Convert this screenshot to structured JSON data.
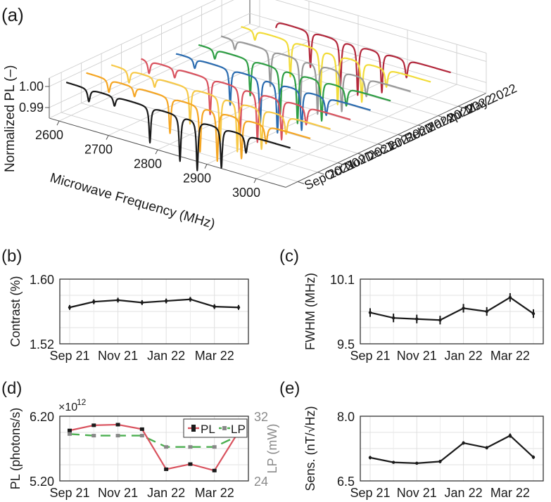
{
  "chart_data": [
    {
      "panel": "(a)",
      "type": "line",
      "zlabel": "Normalized PL (–)",
      "xlabel": "Microwave Frequency (MHz)",
      "x_ticks": [
        "2600",
        "2700",
        "2800",
        "2900",
        "3000"
      ],
      "xlim": [
        2580,
        3060
      ],
      "z_ticks": [
        "0.99",
        "1.00"
      ],
      "y_ticks": [
        "Sep 2021",
        "Oct 2021",
        "Nov 2021",
        "Dec 2021",
        "Jan 2022",
        "Feb 2022",
        "Mar 2022",
        "Apr 2022",
        "May 2022"
      ],
      "dips_mhz": [
        2636,
        2688,
        2760,
        2821,
        2856,
        2905,
        2955
      ],
      "dip_widths_mhz": [
        3.0,
        3.0,
        2.2,
        2.2,
        2.2,
        2.2,
        3.0
      ],
      "dip_depths": [
        0.006,
        0.0045,
        0.017,
        0.0215,
        0.0235,
        0.019,
        0.0085
      ],
      "series": [
        {
          "name": "Sep 2021",
          "color": "#1a1a1a",
          "x_range": [
            2590,
            3045
          ],
          "depth_scale": 1.0
        },
        {
          "name": "Oct 2021",
          "color": "#f5a623",
          "x_range": [
            2590,
            3045
          ],
          "depth_scale": 1.0
        },
        {
          "name": "Nov 2021",
          "color": "#f7c948",
          "x_range": [
            2600,
            3045
          ],
          "depth_scale": 1.0
        },
        {
          "name": "Dec 2021",
          "color": "#d9525e",
          "x_range": [
            2620,
            3045
          ],
          "depth_scale": 1.0
        },
        {
          "name": "Jan 2022",
          "color": "#2b6cb0",
          "x_range": [
            2650,
            3045
          ],
          "depth_scale": 1.0
        },
        {
          "name": "Feb 2022",
          "color": "#2e9e44",
          "x_range": [
            2655,
            3045
          ],
          "depth_scale": 1.0
        },
        {
          "name": "Mar 2022",
          "color": "#9a9a9a",
          "x_range": [
            2660,
            3045
          ],
          "depth_scale": 1.0
        },
        {
          "name": "Apr 2022",
          "color": "#f2dc3a",
          "x_range": [
            2660,
            3045
          ],
          "depth_scale": 1.0
        },
        {
          "name": "May 2022",
          "color": "#b3283c",
          "x_range": [
            2690,
            3045
          ],
          "depth_scale": 1.0
        }
      ]
    },
    {
      "panel": "(b)",
      "type": "line",
      "ylabel": "Contrast (%)",
      "ylim": [
        1.52,
        1.6
      ],
      "y_ticks": [
        "1.52",
        "1.60"
      ],
      "x_ticks": [
        "Sep 21",
        "Nov 21",
        "Jan 22",
        "Mar 22"
      ],
      "x_tick_index": [
        0,
        2,
        4,
        6
      ],
      "series": [
        {
          "values": [
            1.565,
            1.572,
            1.574,
            1.571,
            1.573,
            1.575,
            1.566,
            1.565
          ],
          "errors": [
            0.003,
            0.003,
            0.003,
            0.003,
            0.003,
            0.003,
            0.003,
            0.003
          ],
          "color": "#1a1a1a"
        }
      ]
    },
    {
      "panel": "(c)",
      "type": "line",
      "ylabel": "FWHM (MHz)",
      "ylim": [
        9.5,
        10.1
      ],
      "y_ticks": [
        "9.5",
        "10.1"
      ],
      "x_ticks": [
        "Sep 21",
        "Nov 21",
        "Jan 22",
        "Mar 22"
      ],
      "x_tick_index": [
        0,
        2,
        4,
        6
      ],
      "series": [
        {
          "values": [
            9.79,
            9.74,
            9.73,
            9.72,
            9.83,
            9.8,
            9.93,
            9.78
          ],
          "errors": [
            0.04,
            0.04,
            0.04,
            0.04,
            0.04,
            0.04,
            0.04,
            0.04
          ],
          "color": "#1a1a1a"
        }
      ]
    },
    {
      "panel": "(d)",
      "type": "line",
      "ylabel": "PL (photons/s)",
      "y2label": "LP (mW)",
      "multiplier": "×10",
      "multiplier_exp": "12",
      "ylim": [
        5.2,
        6.2
      ],
      "y_ticks": [
        "6.20",
        "5.20"
      ],
      "y2lim": [
        24,
        32
      ],
      "y2_ticks": [
        "32",
        "24"
      ],
      "x_ticks": [
        "Sep 21",
        "Nov 21",
        "Jan 22",
        "Mar 22"
      ],
      "x_tick_index": [
        0,
        2,
        4,
        6
      ],
      "legend": "top-right",
      "series": [
        {
          "name": "PL",
          "axis": "left",
          "values": [
            5.98,
            6.06,
            6.07,
            6.0,
            5.38,
            5.46,
            5.36,
            5.96
          ],
          "color": "#d9525e",
          "marker_color": "#1a1a1a",
          "style": "solid"
        },
        {
          "name": "LP",
          "axis": "right",
          "values": [
            29.8,
            29.6,
            29.6,
            29.6,
            28.2,
            28.2,
            28.2,
            29.6
          ],
          "color": "#4caf50",
          "marker_color": "#888888",
          "style": "dashed"
        }
      ]
    },
    {
      "panel": "(e)",
      "type": "line",
      "ylabel": "Sens. (nT/√Hz)",
      "ylim": [
        6.5,
        8.0
      ],
      "y_ticks": [
        "8.0",
        "6.5"
      ],
      "x_ticks": [
        "Sep 21",
        "Nov 21",
        "Jan 22",
        "Mar 22"
      ],
      "x_tick_index": [
        0,
        2,
        4,
        6
      ],
      "series": [
        {
          "values": [
            7.04,
            6.93,
            6.91,
            6.95,
            7.38,
            7.27,
            7.55,
            7.05
          ],
          "errors": [
            0.04,
            0.03,
            0.03,
            0.04,
            0.04,
            0.04,
            0.05,
            0.04
          ],
          "color": "#1a1a1a"
        }
      ]
    }
  ]
}
